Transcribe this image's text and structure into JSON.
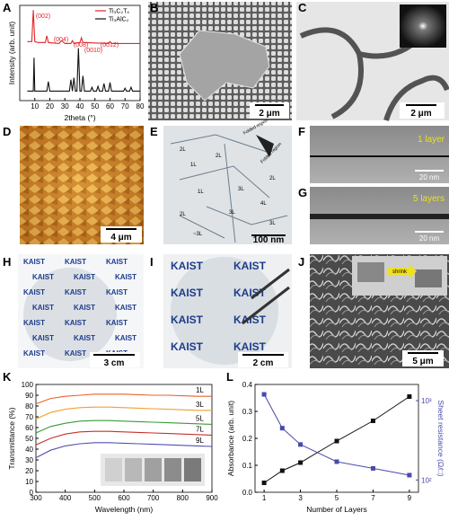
{
  "chart_data": [
    {
      "type": "line",
      "ylabel": "Intensity (arb. unit)",
      "xlabel": "2theta (°)",
      "xlim": [
        0,
        80
      ],
      "xticks": [
        10,
        20,
        30,
        40,
        50,
        60,
        70,
        80
      ],
      "ylim": [
        0,
        100
      ],
      "legend": "upper right",
      "annotations": [
        "(002)",
        "(004)",
        "(008)",
        "(0010)",
        "(0012)"
      ],
      "series": [
        {
          "name": "Ti₃C₂Tₓ",
          "color": "#e0262a",
          "x": [
            5,
            8,
            9,
            10,
            12,
            17,
            18,
            19,
            26,
            28,
            30,
            34,
            35,
            36,
            40,
            41,
            42,
            59,
            60,
            61,
            80
          ],
          "values": [
            62,
            62,
            95,
            62,
            61,
            61,
            68,
            61,
            60,
            63,
            60,
            60,
            63,
            60,
            61,
            66,
            61,
            60,
            62,
            60,
            60
          ]
        },
        {
          "name": "Ti₃AlC₂",
          "color": "#111111",
          "x": [
            5,
            9,
            9.5,
            10,
            18,
            19,
            20,
            33,
            34,
            35,
            36,
            37,
            38,
            39,
            40,
            41,
            42,
            43,
            47,
            48,
            49,
            51,
            52,
            53,
            55,
            56,
            57,
            59,
            60,
            61,
            69,
            70,
            71,
            73,
            74,
            75,
            80
          ],
          "values": [
            10,
            10,
            45,
            10,
            10,
            20,
            10,
            10,
            22,
            10,
            24,
            10,
            10,
            55,
            10,
            10,
            26,
            10,
            10,
            14,
            10,
            10,
            15,
            10,
            10,
            18,
            10,
            10,
            19,
            10,
            10,
            13,
            10,
            10,
            14,
            10,
            10
          ]
        }
      ]
    },
    {
      "type": "line",
      "xlabel": "Wavelength (nm)",
      "ylabel": "Transmittance (%)",
      "xlim": [
        300,
        900
      ],
      "xticks": [
        300,
        400,
        500,
        600,
        700,
        800,
        900
      ],
      "ylim": [
        0,
        100
      ],
      "yticks": [
        0,
        10,
        20,
        30,
        40,
        50,
        60,
        70,
        80,
        90,
        100
      ],
      "legend": "line-end",
      "x": [
        300,
        350,
        400,
        450,
        500,
        550,
        600,
        650,
        700,
        750,
        800,
        850,
        900
      ],
      "series": [
        {
          "name": "1L",
          "color": "#e8632b",
          "values": [
            82,
            87,
            89,
            90,
            91,
            91,
            91,
            90.5,
            90,
            90,
            89.5,
            89,
            89
          ]
        },
        {
          "name": "3L",
          "color": "#f0a030",
          "values": [
            68,
            74,
            77,
            78.5,
            79,
            79,
            78.5,
            78,
            77.5,
            77,
            76.5,
            76,
            76
          ]
        },
        {
          "name": "5L",
          "color": "#3a9a3a",
          "values": [
            55,
            61,
            64,
            66,
            66.5,
            66.5,
            66,
            65.5,
            65,
            64.5,
            64,
            63.5,
            63
          ]
        },
        {
          "name": "7L",
          "color": "#c8302a",
          "values": [
            44,
            50,
            54,
            56,
            56.5,
            56.5,
            56,
            55.5,
            55,
            54.5,
            54,
            53.5,
            53
          ]
        },
        {
          "name": "9L",
          "color": "#5050b0",
          "values": [
            32,
            39,
            43,
            45,
            46,
            46,
            45.5,
            45,
            44.5,
            44,
            43.5,
            43,
            42.5
          ]
        }
      ]
    },
    {
      "type": "line",
      "xlabel": "Number of Layers",
      "ylabel": "Absorbance (arb. unit)",
      "y2label": "Sheet resistance (Ω/□)",
      "markers": true,
      "x": [
        1,
        2,
        3,
        5,
        7,
        9
      ],
      "xlim": [
        0.5,
        9.5
      ],
      "xticks": [
        1,
        3,
        5,
        7,
        9
      ],
      "ylim": [
        0,
        0.4
      ],
      "yticks": [
        {
          "value": 0,
          "label": "0.0"
        },
        0.1,
        0.2,
        0.3,
        0.4
      ],
      "y2log": true,
      "y2lim": [
        70,
        1600
      ],
      "y2ticks": [
        {
          "value": 100,
          "label": "10²"
        },
        {
          "value": 1000,
          "label": "10³"
        }
      ],
      "y2color": "#4a4aa8",
      "series": [
        {
          "name": "Absorbance",
          "color": "#111111",
          "values": [
            0.035,
            0.08,
            0.11,
            0.19,
            0.265,
            0.355
          ]
        },
        {
          "name": "Sheet resistance",
          "color": "#4a4aa8",
          "axis": "y2",
          "values": [
            1200,
            450,
            280,
            170,
            140,
            115
          ]
        }
      ]
    }
  ],
  "panels": {
    "letters": [
      "A",
      "B",
      "C",
      "D",
      "E",
      "F",
      "G",
      "H",
      "I",
      "J",
      "K",
      "L"
    ],
    "B": {
      "scale": "2 μm"
    },
    "C": {
      "scale": "2 μm"
    },
    "D": {
      "scale": "4 μm"
    },
    "E": {
      "scale": "100 nm",
      "folded": "Folded region",
      "layers": [
        "2L",
        "1L",
        "2L",
        "1L",
        "3L",
        "3L",
        "2L",
        "4L",
        "3L",
        "~3L",
        "2L"
      ]
    },
    "F": {
      "tag": "1 layer",
      "scale": "20 nm"
    },
    "G": {
      "tag": "5 layers",
      "scale": "20 nm"
    },
    "H": {
      "logo": "KAIST",
      "scale": "3 cm"
    },
    "I": {
      "logo": "KAIST",
      "scale": "2 cm"
    },
    "J": {
      "tag": "shrink",
      "scale": "5 μm"
    }
  }
}
